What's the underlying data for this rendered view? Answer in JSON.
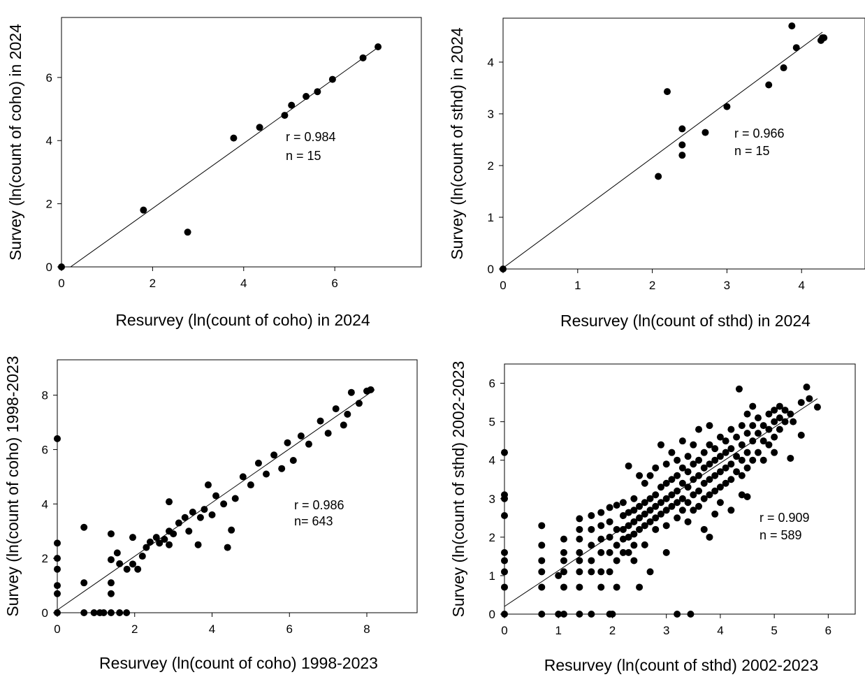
{
  "chart_data": [
    {
      "type": "scatter",
      "xlabel": "Resurvey (ln(count of coho) in 2024",
      "ylabel": "Survey (ln(count of coho) in 2024",
      "xlim": [
        0,
        7.9
      ],
      "ylim": [
        0,
        7.9
      ],
      "xticks": [
        0,
        2,
        4,
        6
      ],
      "yticks": [
        0,
        2,
        4,
        6
      ],
      "grid": false,
      "annotations": [
        "r = 0.984",
        "n = 15"
      ],
      "fit_line": {
        "x": [
          0.2,
          6.95
        ],
        "y": [
          0,
          6.95
        ]
      },
      "points": [
        [
          0,
          0
        ],
        [
          1.8,
          1.8
        ],
        [
          2.77,
          1.1
        ],
        [
          3.78,
          4.08
        ],
        [
          4.35,
          4.42
        ],
        [
          4.9,
          4.8
        ],
        [
          5.05,
          5.12
        ],
        [
          5.37,
          5.4
        ],
        [
          5.62,
          5.55
        ],
        [
          5.95,
          5.94
        ],
        [
          6.62,
          6.62
        ],
        [
          6.95,
          6.97
        ]
      ]
    },
    {
      "type": "scatter",
      "xlabel": "Resurvey (ln(count of sthd) in 2024",
      "ylabel": "Survey (ln(count of sthd) in 2024",
      "xlim": [
        0,
        4.85
      ],
      "ylim": [
        0,
        4.85
      ],
      "xticks": [
        0,
        1,
        2,
        3,
        4
      ],
      "yticks": [
        0,
        1,
        2,
        3,
        4
      ],
      "grid": false,
      "annotations": [
        "r = 0.966",
        "n = 15"
      ],
      "fit_line": {
        "x": [
          0,
          4.28
        ],
        "y": [
          0.02,
          4.58
        ]
      },
      "points": [
        [
          0,
          0
        ],
        [
          2.08,
          1.79
        ],
        [
          2.2,
          3.43
        ],
        [
          2.4,
          2.71
        ],
        [
          2.4,
          2.4
        ],
        [
          2.4,
          2.2
        ],
        [
          2.71,
          2.64
        ],
        [
          3.0,
          3.14
        ],
        [
          3.56,
          3.56
        ],
        [
          3.76,
          3.89
        ],
        [
          3.87,
          4.7
        ],
        [
          3.93,
          4.28
        ],
        [
          4.26,
          4.42
        ],
        [
          4.28,
          4.47
        ],
        [
          4.3,
          4.47
        ]
      ]
    },
    {
      "type": "scatter",
      "xlabel": "Resurvey (ln(count of coho) 1998-2023",
      "ylabel": "Survey (ln(count of coho) 1998-2023",
      "xlim": [
        0,
        9.3
      ],
      "ylim": [
        0,
        9.3
      ],
      "xticks": [
        0,
        2,
        4,
        6,
        8
      ],
      "yticks": [
        0,
        2,
        4,
        6,
        8
      ],
      "grid": false,
      "annotations": [
        "r = 0.986",
        "n= 643"
      ],
      "fit_line": {
        "x": [
          0,
          8.2
        ],
        "y": [
          0.1,
          8.2
        ]
      },
      "points": [
        [
          0,
          6.4
        ],
        [
          0,
          2.56
        ],
        [
          0,
          2.0
        ],
        [
          0,
          1.6
        ],
        [
          0,
          1.0
        ],
        [
          0,
          0.7
        ],
        [
          0,
          0
        ],
        [
          0.69,
          3.14
        ],
        [
          0.69,
          1.1
        ],
        [
          0.69,
          0
        ],
        [
          0.95,
          0
        ],
        [
          1.1,
          0
        ],
        [
          1.2,
          0
        ],
        [
          1.39,
          2.9
        ],
        [
          1.39,
          1.95
        ],
        [
          1.39,
          1.1
        ],
        [
          1.39,
          0.7
        ],
        [
          1.39,
          0
        ],
        [
          1.55,
          2.2
        ],
        [
          1.61,
          1.8
        ],
        [
          1.61,
          0
        ],
        [
          1.79,
          0
        ],
        [
          1.8,
          1.6
        ],
        [
          1.95,
          2.77
        ],
        [
          1.95,
          1.79
        ],
        [
          2.08,
          1.6
        ],
        [
          2.2,
          2.08
        ],
        [
          2.3,
          2.4
        ],
        [
          2.4,
          2.6
        ],
        [
          2.56,
          2.77
        ],
        [
          2.64,
          2.56
        ],
        [
          2.77,
          2.7
        ],
        [
          2.89,
          2.5
        ],
        [
          2.89,
          4.08
        ],
        [
          2.89,
          3.0
        ],
        [
          3.0,
          2.9
        ],
        [
          3.14,
          3.3
        ],
        [
          3.3,
          3.5
        ],
        [
          3.4,
          3.0
        ],
        [
          3.5,
          3.7
        ],
        [
          3.64,
          2.5
        ],
        [
          3.7,
          3.5
        ],
        [
          3.8,
          3.8
        ],
        [
          3.9,
          4.7
        ],
        [
          4.0,
          3.6
        ],
        [
          4.1,
          4.3
        ],
        [
          4.3,
          4.0
        ],
        [
          4.4,
          2.4
        ],
        [
          4.5,
          3.04
        ],
        [
          4.6,
          4.2
        ],
        [
          4.8,
          5.0
        ],
        [
          5.0,
          4.7
        ],
        [
          5.2,
          5.5
        ],
        [
          5.4,
          5.1
        ],
        [
          5.6,
          5.8
        ],
        [
          5.8,
          5.3
        ],
        [
          5.95,
          6.25
        ],
        [
          6.1,
          5.6
        ],
        [
          6.3,
          6.5
        ],
        [
          6.5,
          6.2
        ],
        [
          6.8,
          7.05
        ],
        [
          7.0,
          6.6
        ],
        [
          7.2,
          7.5
        ],
        [
          7.4,
          6.9
        ],
        [
          7.5,
          7.3
        ],
        [
          7.6,
          8.1
        ],
        [
          7.8,
          7.7
        ],
        [
          8.0,
          8.15
        ],
        [
          8.1,
          8.2
        ]
      ]
    },
    {
      "type": "scatter",
      "xlabel": "Resurvey (ln(count of sthd) 2002-2023",
      "ylabel": "Survey (ln(count of sthd) 2002-2023",
      "xlim": [
        0,
        6.5
      ],
      "ylim": [
        0,
        6.5
      ],
      "xticks": [
        0,
        1,
        2,
        3,
        4,
        5,
        6
      ],
      "yticks": [
        0,
        1,
        2,
        3,
        4,
        5,
        6
      ],
      "grid": false,
      "annotations": [
        "r = 0.909",
        "n = 589"
      ],
      "fit_line": {
        "x": [
          0,
          5.8
        ],
        "y": [
          0.2,
          5.6
        ]
      },
      "points": [
        [
          0,
          4.2
        ],
        [
          0,
          3.1
        ],
        [
          0,
          3.0
        ],
        [
          0,
          2.56
        ],
        [
          0,
          1.6
        ],
        [
          0,
          1.39
        ],
        [
          0,
          1.1
        ],
        [
          0,
          0.7
        ],
        [
          0,
          0
        ],
        [
          0.69,
          2.3
        ],
        [
          0.69,
          1.79
        ],
        [
          0.69,
          1.39
        ],
        [
          0.69,
          1.1
        ],
        [
          0.69,
          0.7
        ],
        [
          0.69,
          0
        ],
        [
          1.1,
          1.95
        ],
        [
          1.1,
          1.6
        ],
        [
          1.1,
          1.39
        ],
        [
          1.1,
          1.1
        ],
        [
          1.1,
          0.7
        ],
        [
          1.1,
          0
        ],
        [
          1.0,
          1.0
        ],
        [
          1.0,
          0
        ],
        [
          1.39,
          2.48
        ],
        [
          1.39,
          2.2
        ],
        [
          1.39,
          1.95
        ],
        [
          1.39,
          1.6
        ],
        [
          1.39,
          1.39
        ],
        [
          1.39,
          1.1
        ],
        [
          1.39,
          0.7
        ],
        [
          1.39,
          0
        ],
        [
          1.61,
          2.56
        ],
        [
          1.61,
          2.2
        ],
        [
          1.61,
          1.79
        ],
        [
          1.61,
          1.39
        ],
        [
          1.61,
          1.1
        ],
        [
          1.61,
          0
        ],
        [
          1.79,
          2.64
        ],
        [
          1.79,
          2.3
        ],
        [
          1.79,
          1.95
        ],
        [
          1.79,
          1.6
        ],
        [
          1.79,
          1.1
        ],
        [
          1.79,
          0.7
        ],
        [
          1.95,
          2.77
        ],
        [
          1.95,
          2.4
        ],
        [
          1.95,
          2.0
        ],
        [
          1.95,
          1.6
        ],
        [
          1.95,
          1.1
        ],
        [
          1.95,
          0
        ],
        [
          2.0,
          0
        ],
        [
          2.08,
          2.83
        ],
        [
          2.08,
          2.2
        ],
        [
          2.08,
          1.79
        ],
        [
          2.08,
          1.39
        ],
        [
          2.08,
          0.7
        ],
        [
          2.2,
          2.9
        ],
        [
          2.2,
          2.56
        ],
        [
          2.2,
          2.2
        ],
        [
          2.2,
          1.95
        ],
        [
          2.2,
          1.6
        ],
        [
          2.3,
          3.85
        ],
        [
          2.3,
          2.64
        ],
        [
          2.3,
          2.3
        ],
        [
          2.3,
          2.0
        ],
        [
          2.3,
          1.6
        ],
        [
          2.4,
          3.0
        ],
        [
          2.4,
          2.7
        ],
        [
          2.4,
          2.4
        ],
        [
          2.4,
          2.08
        ],
        [
          2.4,
          1.79
        ],
        [
          2.4,
          1.39
        ],
        [
          2.5,
          3.6
        ],
        [
          2.5,
          2.8
        ],
        [
          2.5,
          2.5
        ],
        [
          2.5,
          2.2
        ],
        [
          2.5,
          0.7
        ],
        [
          2.6,
          3.4
        ],
        [
          2.6,
          2.9
        ],
        [
          2.6,
          2.6
        ],
        [
          2.6,
          2.3
        ],
        [
          2.6,
          1.8
        ],
        [
          2.7,
          3.6
        ],
        [
          2.7,
          3.0
        ],
        [
          2.7,
          2.7
        ],
        [
          2.7,
          2.4
        ],
        [
          2.7,
          1.1
        ],
        [
          2.8,
          3.8
        ],
        [
          2.8,
          3.1
        ],
        [
          2.8,
          2.8
        ],
        [
          2.8,
          2.5
        ],
        [
          2.8,
          2.2
        ],
        [
          2.9,
          3.3
        ],
        [
          2.9,
          2.9
        ],
        [
          2.9,
          2.6
        ],
        [
          2.9,
          4.4
        ],
        [
          3.0,
          3.9
        ],
        [
          3.0,
          3.4
        ],
        [
          3.0,
          3.0
        ],
        [
          3.0,
          2.7
        ],
        [
          3.0,
          2.3
        ],
        [
          3.0,
          1.6
        ],
        [
          3.1,
          3.5
        ],
        [
          3.1,
          3.1
        ],
        [
          3.1,
          2.8
        ],
        [
          3.1,
          4.2
        ],
        [
          3.2,
          4.0
        ],
        [
          3.2,
          3.6
        ],
        [
          3.2,
          3.2
        ],
        [
          3.2,
          2.9
        ],
        [
          3.2,
          2.5
        ],
        [
          3.2,
          0
        ],
        [
          3.3,
          3.8
        ],
        [
          3.3,
          3.4
        ],
        [
          3.3,
          3.0
        ],
        [
          3.3,
          2.7
        ],
        [
          3.3,
          4.5
        ],
        [
          3.4,
          4.1
        ],
        [
          3.4,
          3.7
        ],
        [
          3.4,
          3.3
        ],
        [
          3.4,
          2.9
        ],
        [
          3.4,
          2.4
        ],
        [
          3.5,
          4.4
        ],
        [
          3.5,
          3.9
        ],
        [
          3.5,
          3.5
        ],
        [
          3.5,
          3.1
        ],
        [
          3.5,
          2.7
        ],
        [
          3.45,
          0
        ],
        [
          3.6,
          4.8
        ],
        [
          3.6,
          4.0
        ],
        [
          3.6,
          3.6
        ],
        [
          3.6,
          3.2
        ],
        [
          3.6,
          2.8
        ],
        [
          3.7,
          4.2
        ],
        [
          3.7,
          3.8
        ],
        [
          3.7,
          3.4
        ],
        [
          3.7,
          3.0
        ],
        [
          3.7,
          2.2
        ],
        [
          3.8,
          4.9
        ],
        [
          3.8,
          4.4
        ],
        [
          3.8,
          3.9
        ],
        [
          3.8,
          3.5
        ],
        [
          3.8,
          3.1
        ],
        [
          3.8,
          2.0
        ],
        [
          3.9,
          4.3
        ],
        [
          3.9,
          4.0
        ],
        [
          3.9,
          3.6
        ],
        [
          3.9,
          3.2
        ],
        [
          3.9,
          2.6
        ],
        [
          4.0,
          4.6
        ],
        [
          4.0,
          4.1
        ],
        [
          4.0,
          3.7
        ],
        [
          4.0,
          3.3
        ],
        [
          4.0,
          2.9
        ],
        [
          4.1,
          4.5
        ],
        [
          4.1,
          4.2
        ],
        [
          4.1,
          3.8
        ],
        [
          4.1,
          3.4
        ],
        [
          4.2,
          4.8
        ],
        [
          4.2,
          4.3
        ],
        [
          4.2,
          3.9
        ],
        [
          4.2,
          3.5
        ],
        [
          4.2,
          2.7
        ],
        [
          4.3,
          4.6
        ],
        [
          4.3,
          4.1
        ],
        [
          4.3,
          3.7
        ],
        [
          4.35,
          5.85
        ],
        [
          4.4,
          4.9
        ],
        [
          4.4,
          4.4
        ],
        [
          4.4,
          4.0
        ],
        [
          4.4,
          3.6
        ],
        [
          4.4,
          3.1
        ],
        [
          4.5,
          5.2
        ],
        [
          4.5,
          4.7
        ],
        [
          4.5,
          4.2
        ],
        [
          4.5,
          3.8
        ],
        [
          4.5,
          3.05
        ],
        [
          4.6,
          5.4
        ],
        [
          4.6,
          4.9
        ],
        [
          4.6,
          4.5
        ],
        [
          4.6,
          4.0
        ],
        [
          4.7,
          5.1
        ],
        [
          4.7,
          4.7
        ],
        [
          4.7,
          4.2
        ],
        [
          4.8,
          4.9
        ],
        [
          4.8,
          4.5
        ],
        [
          4.8,
          4.0
        ],
        [
          4.9,
          5.2
        ],
        [
          4.9,
          4.8
        ],
        [
          4.9,
          4.4
        ],
        [
          5.0,
          5.3
        ],
        [
          5.0,
          5.0
        ],
        [
          5.0,
          4.6
        ],
        [
          5.0,
          4.2
        ],
        [
          5.1,
          5.4
        ],
        [
          5.1,
          5.1
        ],
        [
          5.1,
          4.8
        ],
        [
          5.2,
          5.3
        ],
        [
          5.2,
          5.0
        ],
        [
          5.3,
          5.2
        ],
        [
          5.3,
          4.05
        ],
        [
          5.35,
          5.0
        ],
        [
          5.5,
          5.5
        ],
        [
          5.5,
          4.65
        ],
        [
          5.6,
          5.9
        ],
        [
          5.65,
          5.6
        ],
        [
          5.8,
          5.38
        ]
      ]
    }
  ]
}
